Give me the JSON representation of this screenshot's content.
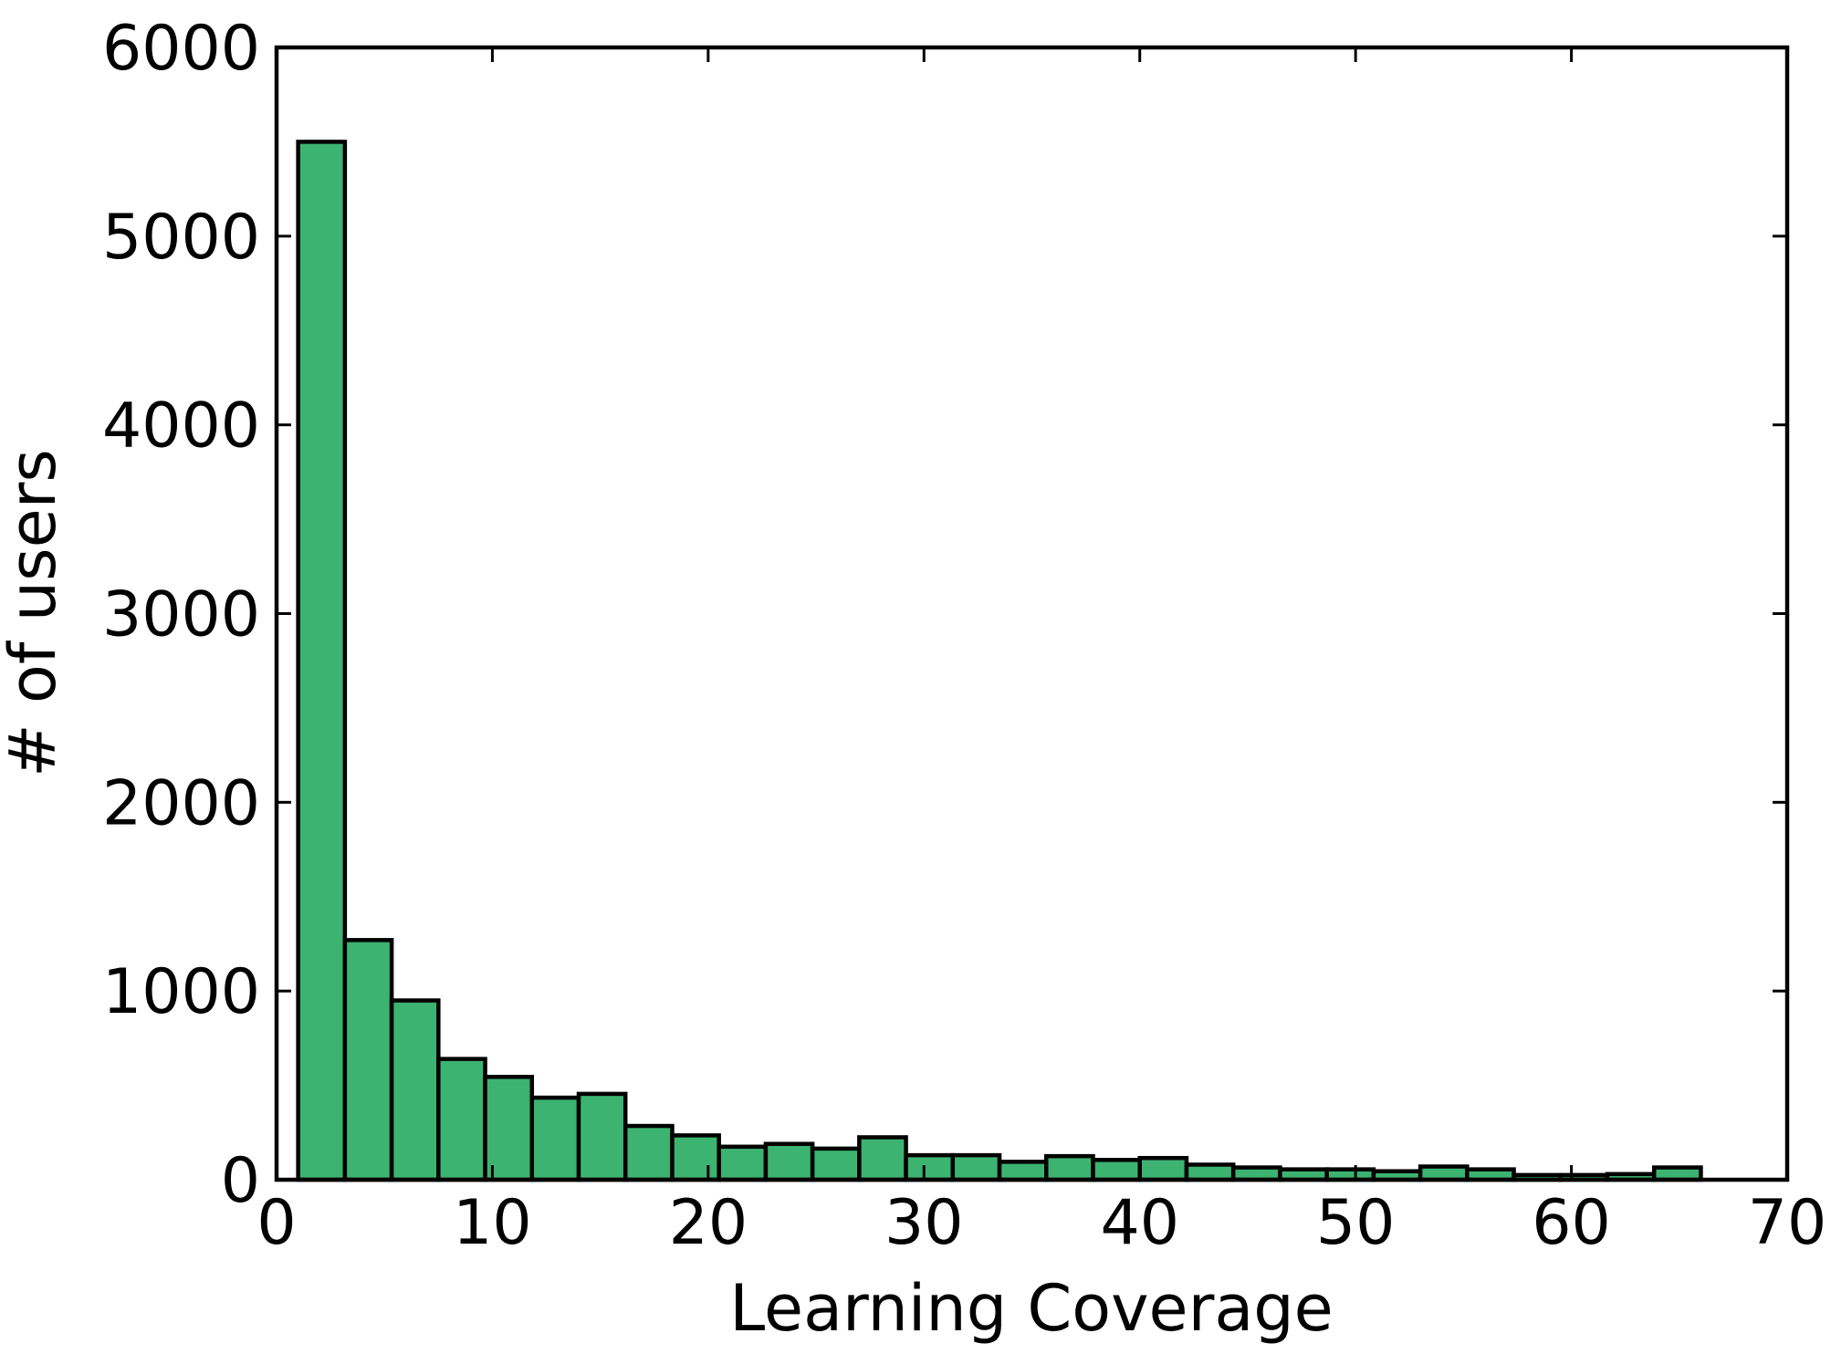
{
  "chart_data": {
    "type": "bar",
    "subtype": "histogram",
    "title": "",
    "xlabel": "Learning Coverage",
    "ylabel": "# of users",
    "xlim": [
      0,
      70
    ],
    "ylim": [
      0,
      6000
    ],
    "xticks": [
      0,
      10,
      20,
      30,
      40,
      50,
      60,
      70
    ],
    "yticks": [
      0,
      1000,
      2000,
      3000,
      4000,
      5000,
      6000
    ],
    "grid": false,
    "legend": "none",
    "bar_color": "#3cb371",
    "edge_color": "#000000",
    "bins": {
      "start": 1.0,
      "width": 2.1667,
      "values": [
        5500,
        1270,
        950,
        640,
        545,
        435,
        455,
        285,
        235,
        175,
        190,
        165,
        225,
        130,
        130,
        95,
        125,
        105,
        115,
        80,
        65,
        55,
        55,
        45,
        70,
        55,
        25,
        25,
        30,
        65
      ]
    }
  }
}
